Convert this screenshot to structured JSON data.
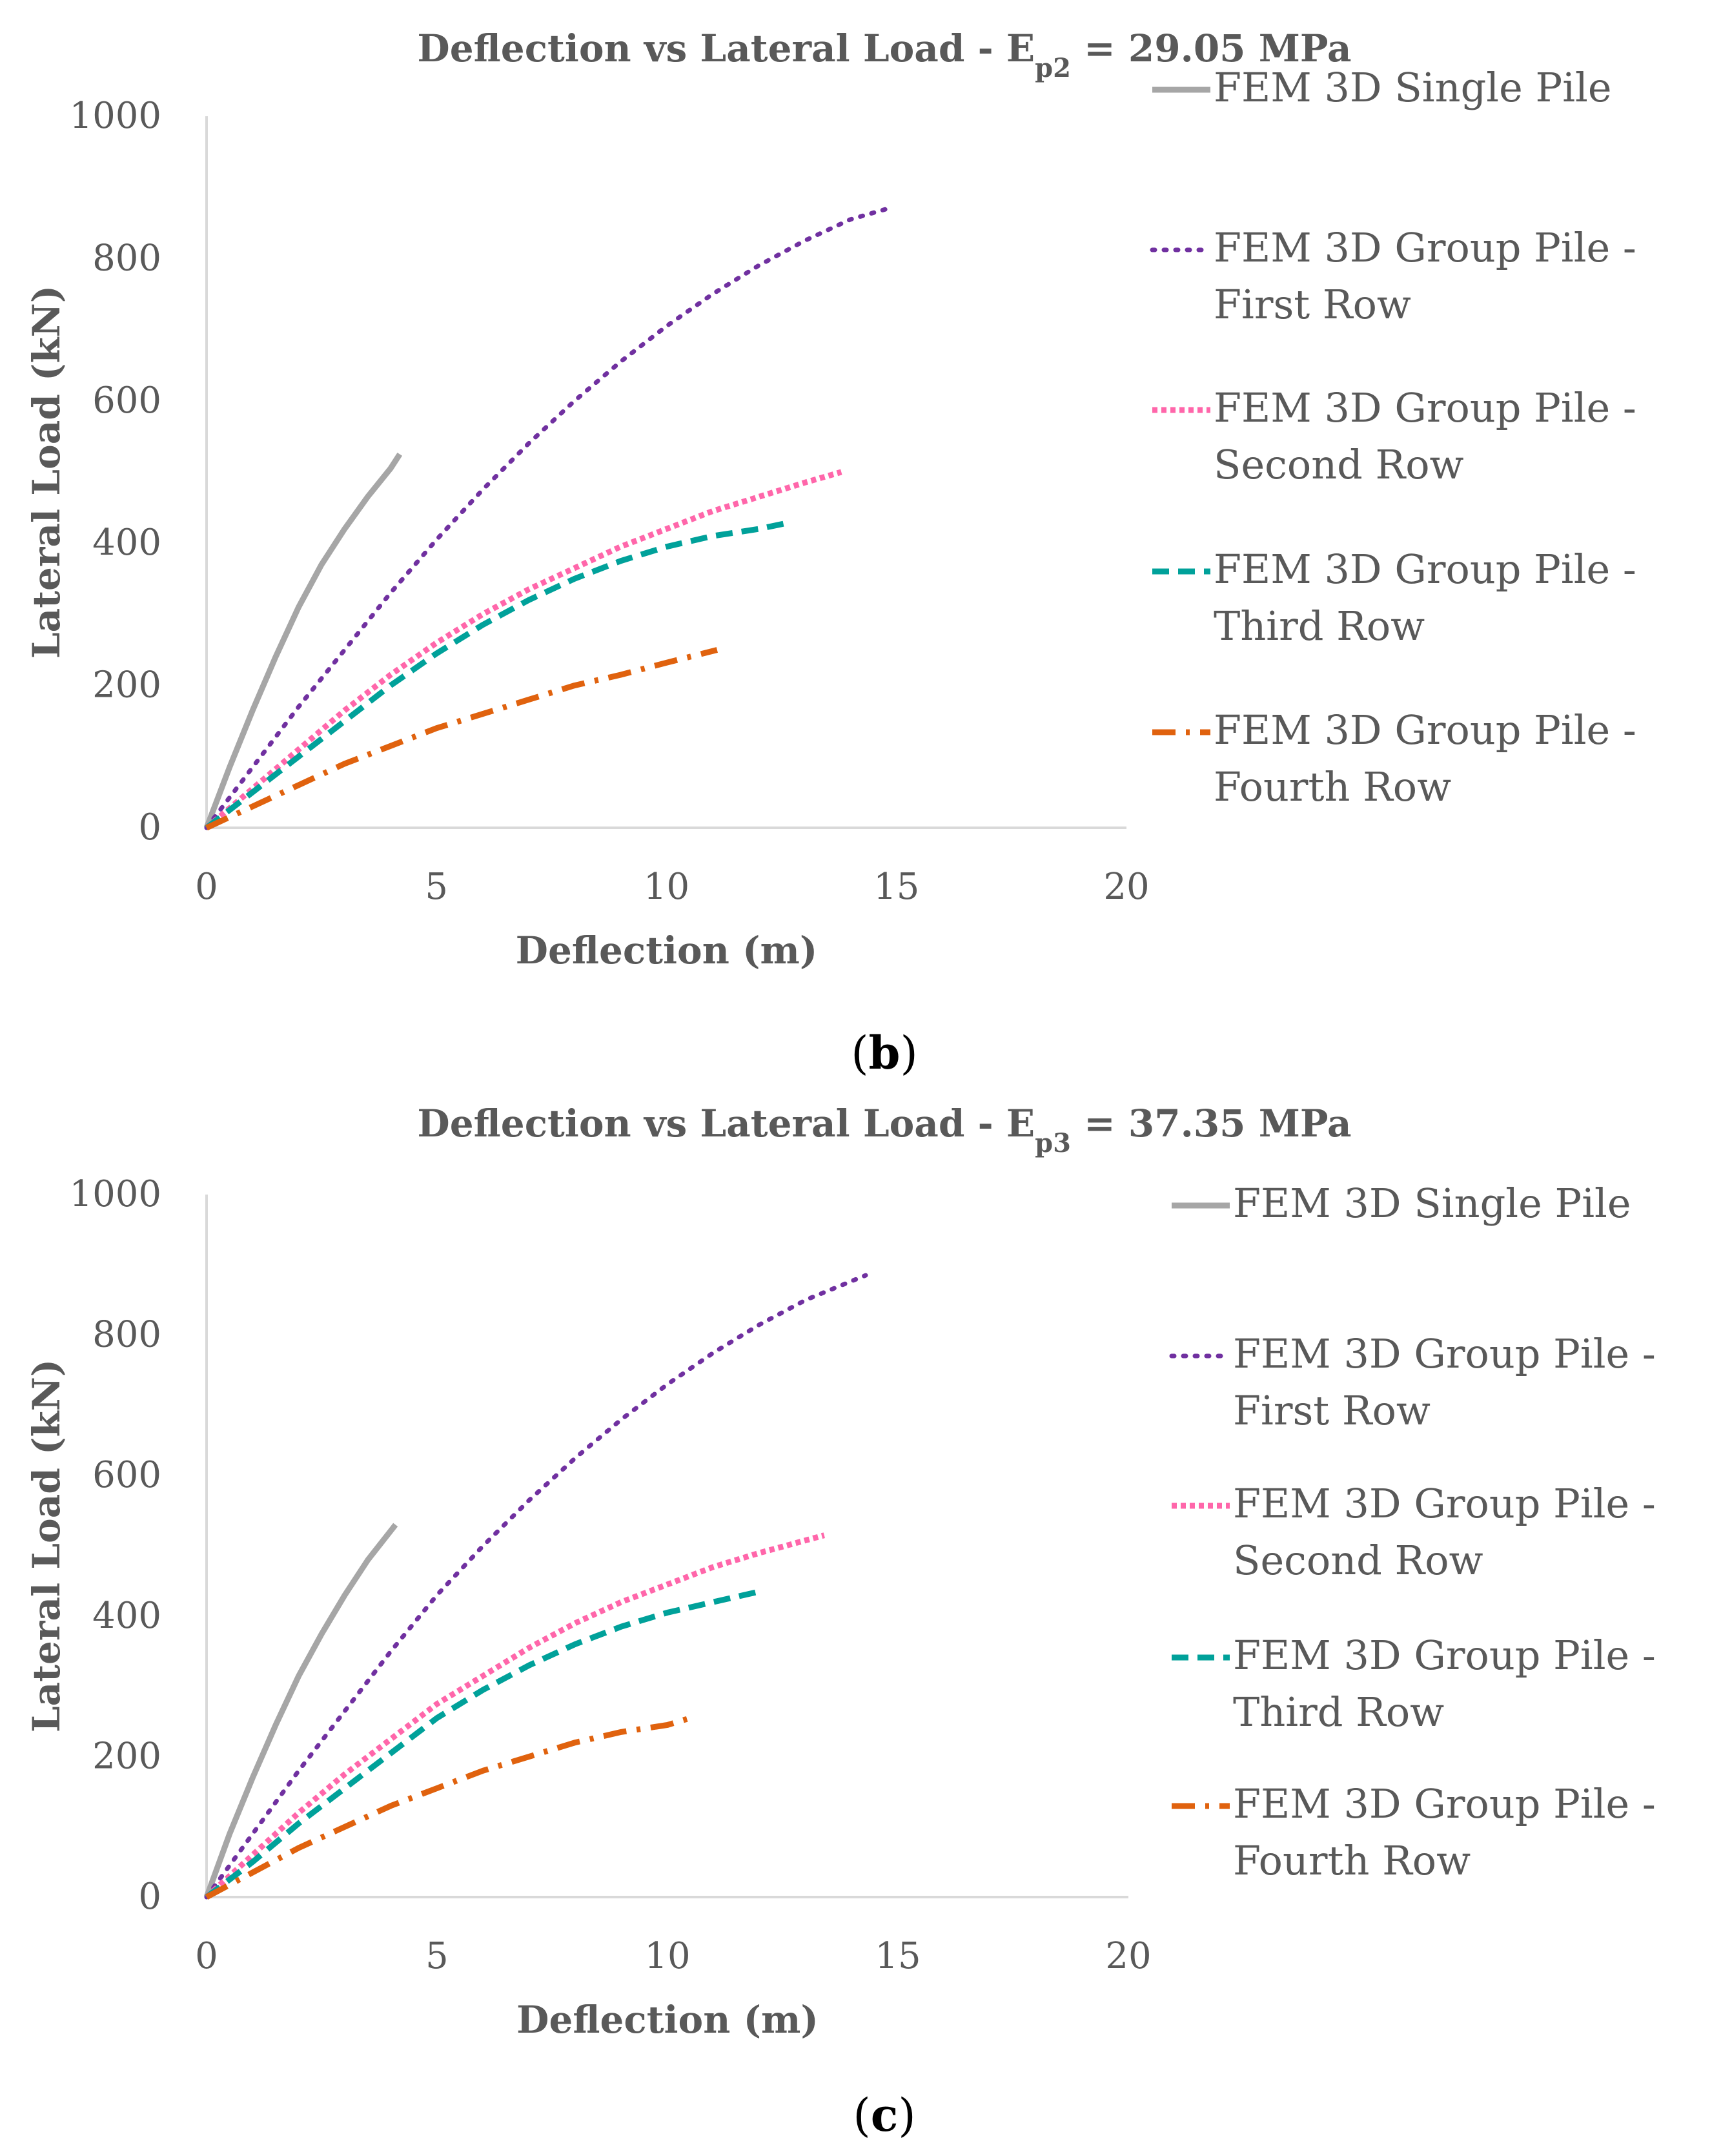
{
  "chart_data": [
    {
      "type": "line",
      "title_main": "Deflection vs Lateral Load - E",
      "title_sub": "p2",
      "title_tail": " = 29.05 MPa",
      "xlabel": "Deflection (m)",
      "ylabel": "Lateral Load (kN)",
      "xlim": [
        0,
        20
      ],
      "ylim": [
        0,
        1000
      ],
      "xticks": [
        "0",
        "5",
        "10",
        "15",
        "20"
      ],
      "yticks": [
        "0",
        "200",
        "400",
        "600",
        "800",
        "1000"
      ],
      "caption_letter": "b",
      "series": [
        {
          "name_lines": [
            "FEM 3D Single Pile"
          ],
          "color": "#a6a6a6",
          "style": "solid",
          "x": [
            0,
            0.5,
            1.0,
            1.5,
            2.0,
            2.5,
            3.0,
            3.5,
            4.0,
            4.2
          ],
          "y": [
            0,
            85,
            165,
            240,
            310,
            370,
            420,
            465,
            505,
            525
          ]
        },
        {
          "name_lines": [
            "FEM 3D Group Pile -",
            "First Row"
          ],
          "color": "#7030a0",
          "style": "dot",
          "x": [
            0,
            1,
            2,
            3,
            4,
            5,
            6,
            7,
            8,
            9,
            10,
            11,
            12,
            13,
            14,
            14.8
          ],
          "y": [
            0,
            85,
            170,
            250,
            330,
            405,
            475,
            540,
            600,
            655,
            705,
            750,
            790,
            825,
            855,
            870
          ]
        },
        {
          "name_lines": [
            "FEM 3D Group Pile -",
            "Second Row"
          ],
          "color": "#ff66aa",
          "style": "densedot",
          "x": [
            0,
            1,
            2,
            3,
            4,
            5,
            6,
            7,
            8,
            9,
            10,
            11,
            12,
            13,
            13.8
          ],
          "y": [
            0,
            55,
            110,
            165,
            215,
            260,
            300,
            335,
            365,
            395,
            420,
            445,
            465,
            485,
            500
          ]
        },
        {
          "name_lines": [
            "FEM 3D Group Pile -",
            "Third Row"
          ],
          "color": "#00a19a",
          "style": "dash",
          "x": [
            0,
            1,
            2,
            3,
            4,
            5,
            6,
            7,
            8,
            9,
            10,
            11,
            12,
            12.6
          ],
          "y": [
            0,
            50,
            100,
            150,
            200,
            245,
            285,
            320,
            350,
            375,
            395,
            410,
            420,
            428
          ]
        },
        {
          "name_lines": [
            "FEM 3D Group Pile -",
            "Fourth Row"
          ],
          "color": "#e0620e",
          "style": "dashdot",
          "x": [
            0,
            1,
            2,
            3,
            4,
            5,
            6,
            7,
            8,
            9,
            10,
            11.1
          ],
          "y": [
            0,
            30,
            60,
            90,
            115,
            140,
            160,
            180,
            200,
            215,
            232,
            250
          ]
        }
      ]
    },
    {
      "type": "line",
      "title_main": "Deflection vs Lateral Load - E",
      "title_sub": "p3",
      "title_tail": " = 37.35 MPa",
      "xlabel": "Deflection (m)",
      "ylabel": "Lateral Load (kN)",
      "xlim": [
        0,
        20
      ],
      "ylim": [
        0,
        1000
      ],
      "xticks": [
        "0",
        "5",
        "10",
        "15",
        "20"
      ],
      "yticks": [
        "0",
        "200",
        "400",
        "600",
        "800",
        "1000"
      ],
      "caption_letter": "c",
      "series": [
        {
          "name_lines": [
            "FEM 3D Single Pile"
          ],
          "color": "#a6a6a6",
          "style": "solid",
          "x": [
            0,
            0.5,
            1.0,
            1.5,
            2.0,
            2.5,
            3.0,
            3.5,
            4.1
          ],
          "y": [
            0,
            90,
            170,
            245,
            315,
            375,
            430,
            480,
            530
          ]
        },
        {
          "name_lines": [
            "FEM 3D Group Pile -",
            "First Row"
          ],
          "color": "#7030a0",
          "style": "dot",
          "x": [
            0,
            1,
            2,
            3,
            4,
            5,
            6,
            7,
            8,
            9,
            10,
            11,
            12,
            13,
            14.3
          ],
          "y": [
            0,
            90,
            180,
            265,
            350,
            430,
            500,
            565,
            625,
            680,
            730,
            775,
            815,
            850,
            885
          ]
        },
        {
          "name_lines": [
            "FEM 3D Group Pile -",
            "Second Row"
          ],
          "color": "#ff66aa",
          "style": "densedot",
          "x": [
            0,
            1,
            2,
            3,
            4,
            5,
            6,
            7,
            8,
            9,
            10,
            11,
            12,
            13.4
          ],
          "y": [
            0,
            60,
            120,
            175,
            225,
            275,
            315,
            355,
            390,
            420,
            445,
            470,
            490,
            515
          ]
        },
        {
          "name_lines": [
            "FEM 3D Group Pile -",
            "Third Row"
          ],
          "color": "#00a19a",
          "style": "dash",
          "x": [
            0,
            1,
            2,
            3,
            4,
            5,
            6,
            7,
            8,
            9,
            10,
            11,
            12
          ],
          "y": [
            0,
            50,
            105,
            155,
            205,
            255,
            295,
            330,
            360,
            385,
            405,
            420,
            435
          ]
        },
        {
          "name_lines": [
            "FEM 3D Group Pile -",
            "Fourth Row"
          ],
          "color": "#e0620e",
          "style": "dashdot",
          "x": [
            0,
            1,
            2,
            3,
            4,
            5,
            6,
            7,
            8,
            9,
            10,
            10.5
          ],
          "y": [
            0,
            35,
            70,
            100,
            130,
            155,
            180,
            200,
            220,
            235,
            245,
            255
          ]
        }
      ]
    }
  ]
}
